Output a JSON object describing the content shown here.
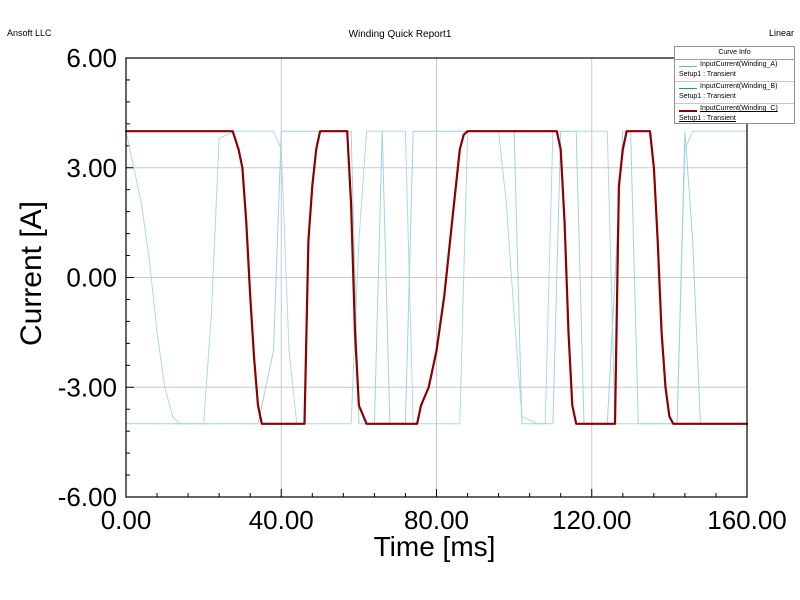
{
  "header": {
    "left": "Ansoft LLC",
    "title": "Winding Quick Report1",
    "right": "Linear"
  },
  "legend": {
    "title": "Curve Info",
    "entries": [
      {
        "name": "InputCurrent(Winding_A)",
        "sub": "Setup1 : Transient",
        "color": "#5fb8d6"
      },
      {
        "name": "InputCurrent(Winding_B)",
        "sub": "Setup1 : Transient",
        "color": "#1f8fb0"
      },
      {
        "name": "InputCurrent(Winding_C)",
        "sub": "Setup1 : Transient",
        "color": "#8b0000"
      }
    ]
  },
  "chart_data": {
    "type": "line",
    "xlabel": "Time [ms]",
    "ylabel": "Current [A]",
    "xlim": [
      0,
      160
    ],
    "ylim": [
      -6,
      6
    ],
    "xticks": [
      "0.00",
      "40.00",
      "80.00",
      "120.00",
      "160.00"
    ],
    "yticks": [
      "-6.00",
      "-3.00",
      "0.00",
      "3.00",
      "6.00"
    ],
    "grid": true,
    "legend_position": "top-right",
    "series": [
      {
        "name": "InputCurrent(Winding_A)",
        "color": "#a8dce8",
        "width": 1,
        "x": [
          0,
          2,
          4,
          6,
          8,
          10,
          12,
          14,
          16,
          20,
          22,
          24,
          28,
          36,
          38,
          40,
          42,
          44,
          46,
          52,
          54,
          58,
          60,
          62,
          64,
          66,
          72,
          74,
          80,
          86,
          88,
          90,
          94,
          96,
          98,
          100,
          102,
          106,
          108,
          110,
          112,
          114,
          116,
          118,
          124,
          126,
          128,
          130,
          132,
          134,
          140,
          142,
          144,
          146,
          148,
          150,
          160
        ],
        "y": [
          4.0,
          3.0,
          2.0,
          0.5,
          -1.5,
          -3.0,
          -3.8,
          -4.0,
          -4.0,
          -4.0,
          -1.0,
          3.8,
          4.0,
          4.0,
          4.0,
          3.5,
          -2.0,
          -4.0,
          -4.0,
          -4.0,
          -4.0,
          -4.0,
          1.0,
          4.0,
          4.0,
          4.0,
          4.0,
          -4.0,
          -4.0,
          -4.0,
          4.0,
          4.0,
          4.0,
          4.0,
          2.0,
          -1.0,
          -3.8,
          -4.0,
          -4.0,
          4.0,
          4.0,
          4.0,
          4.0,
          4.0,
          4.0,
          -4.0,
          -4.0,
          -4.0,
          -4.0,
          -4.0,
          -4.0,
          -4.0,
          3.5,
          4.0,
          4.0,
          4.0,
          4.0
        ]
      },
      {
        "name": "InputCurrent(Winding_B)",
        "color": "#9ed4e4",
        "width": 1,
        "x": [
          0,
          4,
          8,
          14,
          18,
          22,
          26,
          32,
          34,
          38,
          40,
          42,
          44,
          48,
          56,
          58,
          60,
          64,
          66,
          68,
          70,
          72,
          74,
          76,
          80,
          100,
          102,
          104,
          106,
          108,
          110,
          112,
          116,
          118,
          124,
          128,
          130,
          132,
          140,
          142,
          144,
          146,
          148,
          150,
          160
        ],
        "y": [
          -4.0,
          -4.0,
          -4.0,
          -4.0,
          -4.0,
          -4.0,
          -4.0,
          -4.0,
          -4.0,
          -2.0,
          4.0,
          4.0,
          4.0,
          4.0,
          4.0,
          4.0,
          -4.0,
          -4.0,
          4.0,
          -4.0,
          -4.0,
          -4.0,
          4.0,
          4.0,
          4.0,
          4.0,
          -4.0,
          -4.0,
          -4.0,
          -4.0,
          -4.0,
          4.0,
          4.0,
          -4.0,
          -4.0,
          4.0,
          4.0,
          -4.0,
          -4.0,
          -4.0,
          4.0,
          1.0,
          -4.0,
          -4.0,
          -4.0
        ]
      },
      {
        "name": "InputCurrent(Winding_C)",
        "color": "#8b0000",
        "width": 2.2,
        "x": [
          0,
          27.5,
          29,
          30,
          31,
          32,
          33,
          34,
          35,
          45,
          46,
          47,
          48,
          49,
          50,
          57,
          58,
          59,
          60,
          62,
          63,
          75,
          76,
          78,
          80,
          82,
          84,
          86,
          87,
          88,
          90,
          111,
          112,
          113,
          114,
          115,
          116,
          125,
          126,
          127,
          128,
          129,
          130,
          134,
          135,
          136,
          137,
          138,
          139,
          140,
          141,
          160
        ],
        "y": [
          4.0,
          4.0,
          3.5,
          3.0,
          1.5,
          -0.5,
          -2.2,
          -3.5,
          -4.0,
          -4.0,
          -4.0,
          1.0,
          2.5,
          3.5,
          4.0,
          4.0,
          2.0,
          -1.5,
          -3.5,
          -4.0,
          -4.0,
          -4.0,
          -3.5,
          -3.0,
          -2.0,
          -0.5,
          1.5,
          3.5,
          3.9,
          4.0,
          4.0,
          4.0,
          3.5,
          1.5,
          -1.5,
          -3.5,
          -4.0,
          -4.0,
          -4.0,
          2.5,
          3.5,
          4.0,
          4.0,
          4.0,
          4.0,
          3.0,
          1.0,
          -1.5,
          -3.0,
          -3.8,
          -4.0,
          -4.0
        ]
      }
    ]
  }
}
